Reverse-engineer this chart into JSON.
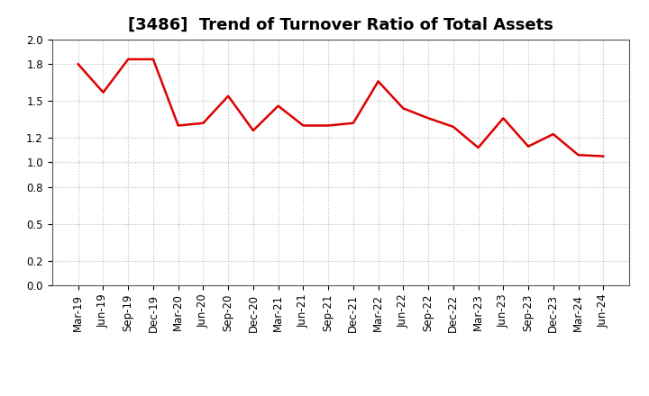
{
  "title": "[3486]  Trend of Turnover Ratio of Total Assets",
  "x_labels": [
    "Mar-19",
    "Jun-19",
    "Sep-19",
    "Dec-19",
    "Mar-20",
    "Jun-20",
    "Sep-20",
    "Dec-20",
    "Mar-21",
    "Jun-21",
    "Sep-21",
    "Dec-21",
    "Mar-22",
    "Jun-22",
    "Sep-22",
    "Dec-22",
    "Mar-23",
    "Jun-23",
    "Sep-23",
    "Dec-23",
    "Mar-24",
    "Jun-24"
  ],
  "y_values": [
    1.8,
    1.57,
    1.84,
    1.84,
    1.3,
    1.32,
    1.54,
    1.26,
    1.46,
    1.3,
    1.3,
    1.32,
    1.66,
    1.44,
    1.36,
    1.29,
    1.12,
    1.36,
    1.13,
    1.23,
    1.06,
    1.05
  ],
  "ylim": [
    0.0,
    2.0
  ],
  "yticks": [
    0.0,
    0.2,
    0.5,
    0.8,
    1.0,
    1.2,
    1.5,
    1.8,
    2.0
  ],
  "line_color": "#dd0000",
  "line_width": 1.8,
  "grid_color": "#bbbbbb",
  "bg_color": "#ffffff",
  "title_fontsize": 13,
  "label_fontsize": 8.5
}
